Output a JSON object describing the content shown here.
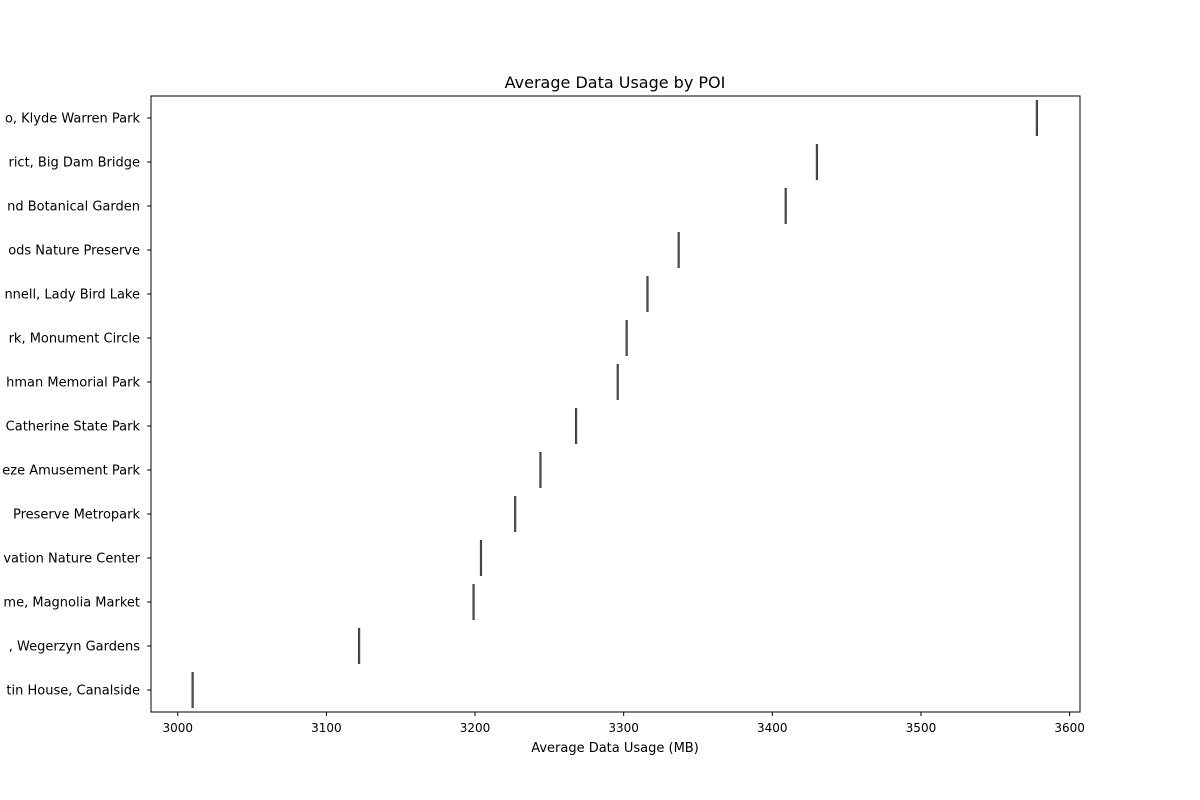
{
  "chart_data": {
    "type": "box",
    "orientation": "horizontal",
    "title": "Average Data Usage by POI",
    "xlabel": "Average Data Usage (MB)",
    "ylabel": "",
    "xlim": [
      2982,
      3607
    ],
    "xticks": [
      3000,
      3100,
      3200,
      3300,
      3400,
      3500,
      3600
    ],
    "grid": false,
    "colors": {
      "box_stroke": "#3d3d3d",
      "axis": "#000000",
      "background": "#ffffff"
    },
    "categories": [
      "o, Klyde Warren Park",
      "rict, Big Dam Bridge",
      "nd Botanical Garden",
      "ods Nature Preserve",
      "nnell, Lady Bird Lake",
      "rk, Monument Circle",
      "hman Memorial Park",
      "Catherine State Park",
      "eze Amusement Park",
      " Preserve Metropark",
      "vation Nature Center",
      "me, Magnolia Market",
      ", Wegerzyn Gardens",
      "tin House, Canalside"
    ],
    "values": [
      3578,
      3430,
      3409,
      3337,
      3316,
      3302,
      3296,
      3268,
      3244,
      3227,
      3204,
      3199,
      3122,
      3010
    ]
  }
}
